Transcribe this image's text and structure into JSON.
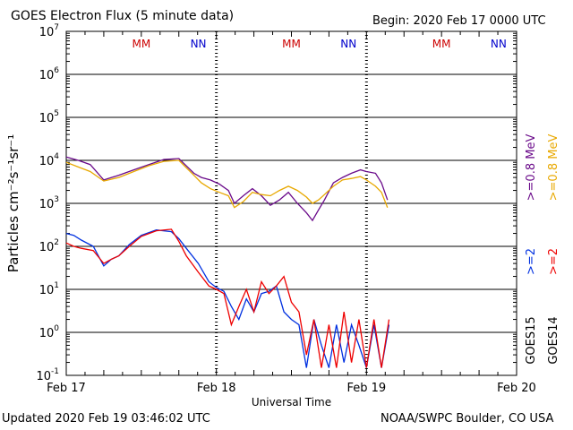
{
  "header": {
    "title": "GOES Electron Flux (5 minute data)",
    "begin": "Begin: 2020 Feb 17 0000 UTC"
  },
  "footer": {
    "updated": "Updated 2020 Feb 19 03:46:02 UTC",
    "credit": "NOAA/SWPC Boulder, CO USA"
  },
  "colors": {
    "goes15_low": "#6a0a8a",
    "goes14_low": "#e8a800",
    "goes15_high": "#0030e0",
    "goes14_high": "#ee0000",
    "mm_label": "#cc0000",
    "nn_label": "#0000cc"
  },
  "chart_data": {
    "type": "line",
    "title": "GOES Electron Flux (5 minute data)",
    "xlabel": "Universal Time",
    "ylabel": "Particles cm⁻²s⁻¹sr⁻¹",
    "x_unit": "days since 2020 Feb 17 00:00 UTC",
    "xlim": [
      0,
      3
    ],
    "ylim": [
      0.1,
      10000000
    ],
    "yscale": "log",
    "x_ticks": [
      {
        "value": 0,
        "label": "Feb 17"
      },
      {
        "value": 1,
        "label": "Feb 18"
      },
      {
        "value": 2,
        "label": "Feb 19"
      },
      {
        "value": 3,
        "label": "Feb 20"
      }
    ],
    "y_ticks": [
      {
        "exp": -1,
        "label": "10",
        "sup": "-1"
      },
      {
        "exp": 0,
        "label": "10",
        "sup": "0"
      },
      {
        "exp": 1,
        "label": "10",
        "sup": "1"
      },
      {
        "exp": 2,
        "label": "10",
        "sup": "2"
      },
      {
        "exp": 3,
        "label": "10",
        "sup": "3"
      },
      {
        "exp": 4,
        "label": "10",
        "sup": "4"
      },
      {
        "exp": 5,
        "label": "10",
        "sup": "5"
      },
      {
        "exp": 6,
        "label": "10",
        "sup": "6"
      },
      {
        "exp": 7,
        "label": "10",
        "sup": "7"
      }
    ],
    "threshold_line": 1000,
    "day_markers": [
      {
        "day": 0,
        "mm": "MM",
        "nn": "NN"
      },
      {
        "day": 1,
        "mm": "MM",
        "nn": "NN"
      },
      {
        "day": 2,
        "mm": "MM",
        "nn": "NN"
      }
    ],
    "series": [
      {
        "name": "GOES15 >=0.8 MeV",
        "color": "#6a0a8a",
        "x": [
          0,
          0.08,
          0.16,
          0.25,
          0.35,
          0.45,
          0.55,
          0.65,
          0.75,
          0.85,
          0.9,
          0.96,
          1.02,
          1.08,
          1.12,
          1.18,
          1.24,
          1.3,
          1.36,
          1.42,
          1.48,
          1.54,
          1.6,
          1.64,
          1.68,
          1.72,
          1.78,
          1.84,
          1.9,
          1.96,
          2.0,
          2.06,
          2.1,
          2.14
        ],
        "y": [
          12000,
          10000,
          8000,
          3500,
          4500,
          6000,
          8000,
          10500,
          11000,
          5000,
          4000,
          3500,
          2800,
          2000,
          1000,
          1500,
          2200,
          1500,
          900,
          1200,
          1800,
          1000,
          600,
          400,
          700,
          1200,
          3000,
          4000,
          5000,
          6000,
          5500,
          5000,
          3000,
          1200
        ]
      },
      {
        "name": "GOES14 >=0.8 MeV",
        "color": "#e8a800",
        "x": [
          0,
          0.08,
          0.16,
          0.25,
          0.35,
          0.45,
          0.55,
          0.65,
          0.75,
          0.85,
          0.9,
          0.96,
          1.02,
          1.08,
          1.12,
          1.18,
          1.24,
          1.3,
          1.36,
          1.42,
          1.48,
          1.54,
          1.6,
          1.64,
          1.68,
          1.72,
          1.78,
          1.84,
          1.9,
          1.96,
          2.0,
          2.06,
          2.1,
          2.14
        ],
        "y": [
          9000,
          7000,
          5500,
          3300,
          4000,
          5500,
          7500,
          9500,
          10000,
          4500,
          3000,
          2200,
          1800,
          1500,
          800,
          1100,
          1800,
          1600,
          1500,
          2000,
          2500,
          2000,
          1400,
          1000,
          1200,
          1600,
          2500,
          3500,
          3800,
          4200,
          3500,
          2500,
          1800,
          800
        ]
      },
      {
        "name": "GOES15 >=2 MeV",
        "color": "#0030e0",
        "x": [
          0,
          0.05,
          0.1,
          0.18,
          0.25,
          0.3,
          0.35,
          0.42,
          0.5,
          0.6,
          0.7,
          0.75,
          0.8,
          0.88,
          0.95,
          1.0,
          1.05,
          1.1,
          1.15,
          1.2,
          1.25,
          1.3,
          1.35,
          1.4,
          1.45,
          1.5,
          1.55,
          1.6,
          1.65,
          1.7,
          1.75,
          1.8,
          1.85,
          1.9,
          1.95,
          2.0,
          2.05,
          2.1,
          2.15
        ],
        "y": [
          200,
          180,
          140,
          100,
          35,
          50,
          60,
          110,
          180,
          240,
          220,
          150,
          90,
          40,
          15,
          11,
          9,
          4,
          2,
          6,
          3,
          8,
          9,
          12,
          3,
          2,
          1.5,
          0.15,
          2,
          0.5,
          0.15,
          1.5,
          0.2,
          1.5,
          0.5,
          0.15,
          1.5,
          0.15,
          1.5
        ]
      },
      {
        "name": "GOES14 >=2 MeV",
        "color": "#ee0000",
        "x": [
          0,
          0.05,
          0.1,
          0.18,
          0.25,
          0.3,
          0.35,
          0.42,
          0.5,
          0.6,
          0.7,
          0.75,
          0.8,
          0.88,
          0.95,
          1.0,
          1.05,
          1.1,
          1.15,
          1.2,
          1.25,
          1.3,
          1.35,
          1.4,
          1.45,
          1.5,
          1.55,
          1.6,
          1.65,
          1.7,
          1.75,
          1.8,
          1.85,
          1.9,
          1.95,
          2.0,
          2.05,
          2.1,
          2.15
        ],
        "y": [
          120,
          100,
          90,
          80,
          40,
          50,
          60,
          100,
          170,
          230,
          250,
          130,
          60,
          25,
          12,
          10,
          8,
          1.5,
          4,
          10,
          3,
          15,
          8,
          12,
          20,
          5,
          3,
          0.3,
          2,
          0.15,
          1.5,
          0.15,
          3,
          0.2,
          2,
          0.15,
          2,
          0.15,
          2
        ]
      }
    ],
    "legend": [
      {
        "label": ">=0.8 MeV",
        "color": "#6a0a8a"
      },
      {
        "label": ">=0.8 MeV",
        "color": "#e8a800"
      },
      {
        "label": ">=2",
        "color": "#0030e0"
      },
      {
        "label": ">=2",
        "color": "#ee0000"
      },
      {
        "label": "GOES15",
        "color": "#000000"
      },
      {
        "label": "GOES14",
        "color": "#000000"
      }
    ],
    "legend_position": "right"
  }
}
